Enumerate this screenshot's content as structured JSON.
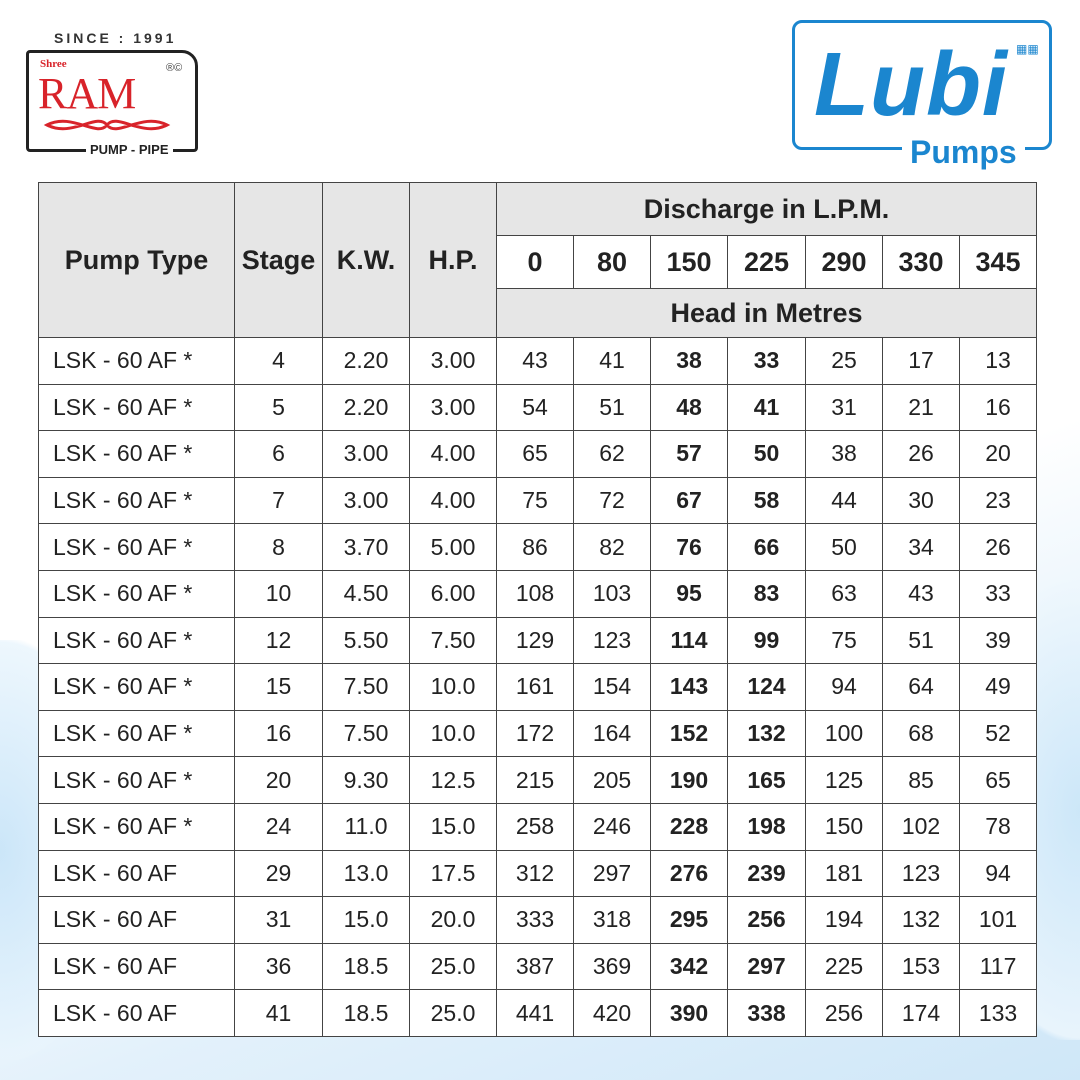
{
  "logos": {
    "left": {
      "since": "SINCE : 1991",
      "shree": "Shree",
      "name": "RAM",
      "reg": "®©",
      "tagline": "PUMP - PIPE",
      "color": "#d8232a"
    },
    "right": {
      "name": "Lubi",
      "tagline": "Pumps",
      "color": "#1b86cf"
    }
  },
  "table": {
    "headers": {
      "pump_type": "Pump Type",
      "stage": "Stage",
      "kw": "K.W.",
      "hp": "H.P.",
      "discharge": "Discharge in L.P.M.",
      "discharge_values": [
        "0",
        "80",
        "150",
        "225",
        "290",
        "330",
        "345"
      ],
      "head": "Head in Metres"
    },
    "bold_columns": [
      "150",
      "225"
    ],
    "rows": [
      [
        "LSK - 60 AF  *",
        "4",
        "2.20",
        "3.00",
        "43",
        "41",
        "38",
        "33",
        "25",
        "17",
        "13"
      ],
      [
        "LSK - 60 AF  *",
        "5",
        "2.20",
        "3.00",
        "54",
        "51",
        "48",
        "41",
        "31",
        "21",
        "16"
      ],
      [
        "LSK - 60 AF  *",
        "6",
        "3.00",
        "4.00",
        "65",
        "62",
        "57",
        "50",
        "38",
        "26",
        "20"
      ],
      [
        "LSK - 60 AF  *",
        "7",
        "3.00",
        "4.00",
        "75",
        "72",
        "67",
        "58",
        "44",
        "30",
        "23"
      ],
      [
        "LSK - 60 AF  *",
        "8",
        "3.70",
        "5.00",
        "86",
        "82",
        "76",
        "66",
        "50",
        "34",
        "26"
      ],
      [
        "LSK - 60 AF  *",
        "10",
        "4.50",
        "6.00",
        "108",
        "103",
        "95",
        "83",
        "63",
        "43",
        "33"
      ],
      [
        "LSK - 60 AF  *",
        "12",
        "5.50",
        "7.50",
        "129",
        "123",
        "114",
        "99",
        "75",
        "51",
        "39"
      ],
      [
        "LSK - 60 AF  *",
        "15",
        "7.50",
        "10.0",
        "161",
        "154",
        "143",
        "124",
        "94",
        "64",
        "49"
      ],
      [
        "LSK - 60 AF  *",
        "16",
        "7.50",
        "10.0",
        "172",
        "164",
        "152",
        "132",
        "100",
        "68",
        "52"
      ],
      [
        "LSK - 60 AF  *",
        "20",
        "9.30",
        "12.5",
        "215",
        "205",
        "190",
        "165",
        "125",
        "85",
        "65"
      ],
      [
        "LSK - 60 AF  *",
        "24",
        "11.0",
        "15.0",
        "258",
        "246",
        "228",
        "198",
        "150",
        "102",
        "78"
      ],
      [
        "LSK - 60 AF",
        "29",
        "13.0",
        "17.5",
        "312",
        "297",
        "276",
        "239",
        "181",
        "123",
        "94"
      ],
      [
        "LSK - 60 AF",
        "31",
        "15.0",
        "20.0",
        "333",
        "318",
        "295",
        "256",
        "194",
        "132",
        "101"
      ],
      [
        "LSK - 60 AF",
        "36",
        "18.5",
        "25.0",
        "387",
        "369",
        "342",
        "297",
        "225",
        "153",
        "117"
      ],
      [
        "LSK - 60 AF",
        "41",
        "18.5",
        "25.0",
        "441",
        "420",
        "390",
        "338",
        "256",
        "174",
        "133"
      ]
    ]
  }
}
